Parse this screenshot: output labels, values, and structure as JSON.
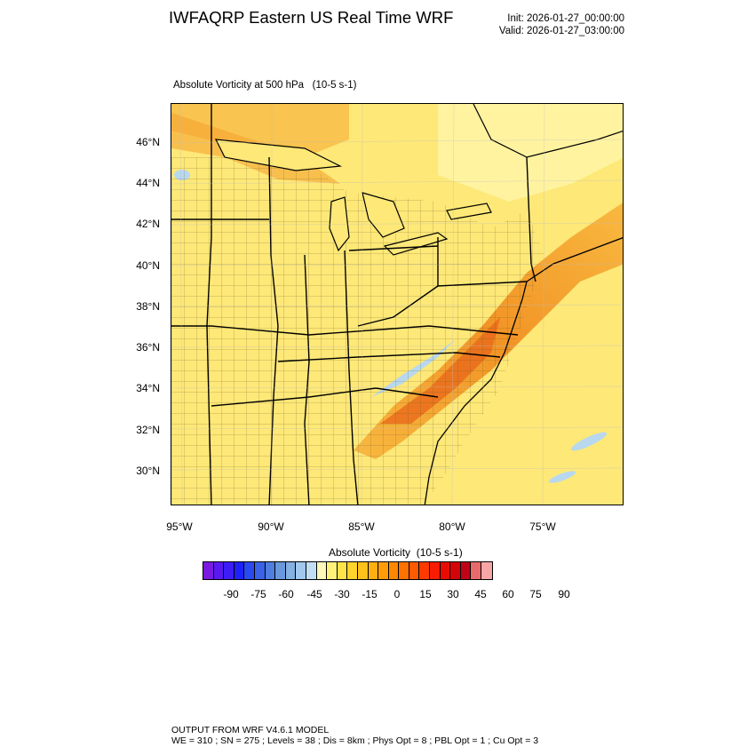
{
  "header": {
    "title": "IWFAQRP Eastern US Real Time WRF",
    "init": "Init: 2026-01-27_00:00:00",
    "valid": "Valid: 2026-01-27_03:00:00"
  },
  "map": {
    "subtitle": "Absolute Vorticity at 500 hPa   (10-5 s-1)",
    "lat_labels": [
      "46°N",
      "44°N",
      "42°N",
      "40°N",
      "38°N",
      "36°N",
      "34°N",
      "32°N",
      "30°N"
    ],
    "lon_labels": [
      "95°W",
      "90°W",
      "85°W",
      "80°W",
      "75°W"
    ],
    "colors": {
      "background": "#fde878",
      "light_yellow": "#fff3a0",
      "orange": "#f8b43a",
      "dark_orange": "#f08a1c",
      "red_orange": "#e8661a",
      "blue_patch": "#b8d8ef"
    }
  },
  "colorbar": {
    "title": "Absolute Vorticity  (10-5 s-1)",
    "tick_labels": [
      "-90",
      "-75",
      "-60",
      "-45",
      "-30",
      "-15",
      "0",
      "15",
      "30",
      "45",
      "60",
      "75",
      "90"
    ],
    "colors": [
      "#7a1ae0",
      "#5a19f0",
      "#3d1df5",
      "#1e22f8",
      "#2a4af0",
      "#3a62e8",
      "#4f7ee0",
      "#6a98dc",
      "#84b0e2",
      "#a2c8ec",
      "#c2def4",
      "#fff8b8",
      "#fff27a",
      "#ffe34a",
      "#ffd42c",
      "#ffc21c",
      "#ffb010",
      "#ff9c08",
      "#ff8800",
      "#ff7200",
      "#ff5a00",
      "#ff3a00",
      "#f81c00",
      "#e80c00",
      "#d40408",
      "#c00418",
      "#e86a6a",
      "#f6a6a6"
    ]
  },
  "footer": {
    "line1": "OUTPUT FROM WRF V4.6.1 MODEL",
    "line2": "WE = 310 ; SN = 275 ; Levels = 38 ; Dis = 8km ; Phys Opt = 8 ; PBL Opt = 1 ; Cu Opt = 3"
  }
}
